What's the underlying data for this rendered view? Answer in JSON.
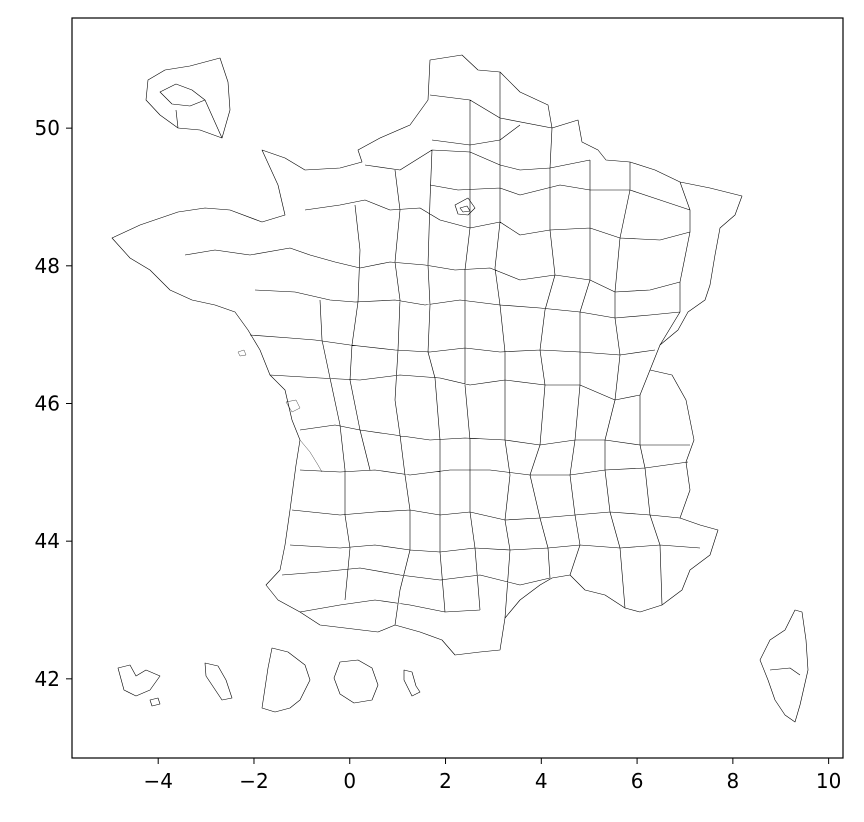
{
  "map": {
    "type": "choropleth-outline",
    "fill": "none",
    "stroke_color": "#000000",
    "background": "#ffffff",
    "xlim": [
      -5.8,
      10.3
    ],
    "ylim": [
      40.85,
      51.6
    ],
    "x_ticks": [
      -4,
      -2,
      0,
      2,
      4,
      6,
      8,
      10
    ],
    "x_tick_labels": [
      "−4",
      "−2",
      "0",
      "2",
      "4",
      "6",
      "8",
      "10"
    ],
    "y_ticks": [
      42,
      44,
      46,
      48,
      50
    ],
    "y_tick_labels": [
      "42",
      "44",
      "46",
      "48",
      "50"
    ],
    "grid": false,
    "xlabel": "",
    "ylabel": "",
    "title": ""
  }
}
